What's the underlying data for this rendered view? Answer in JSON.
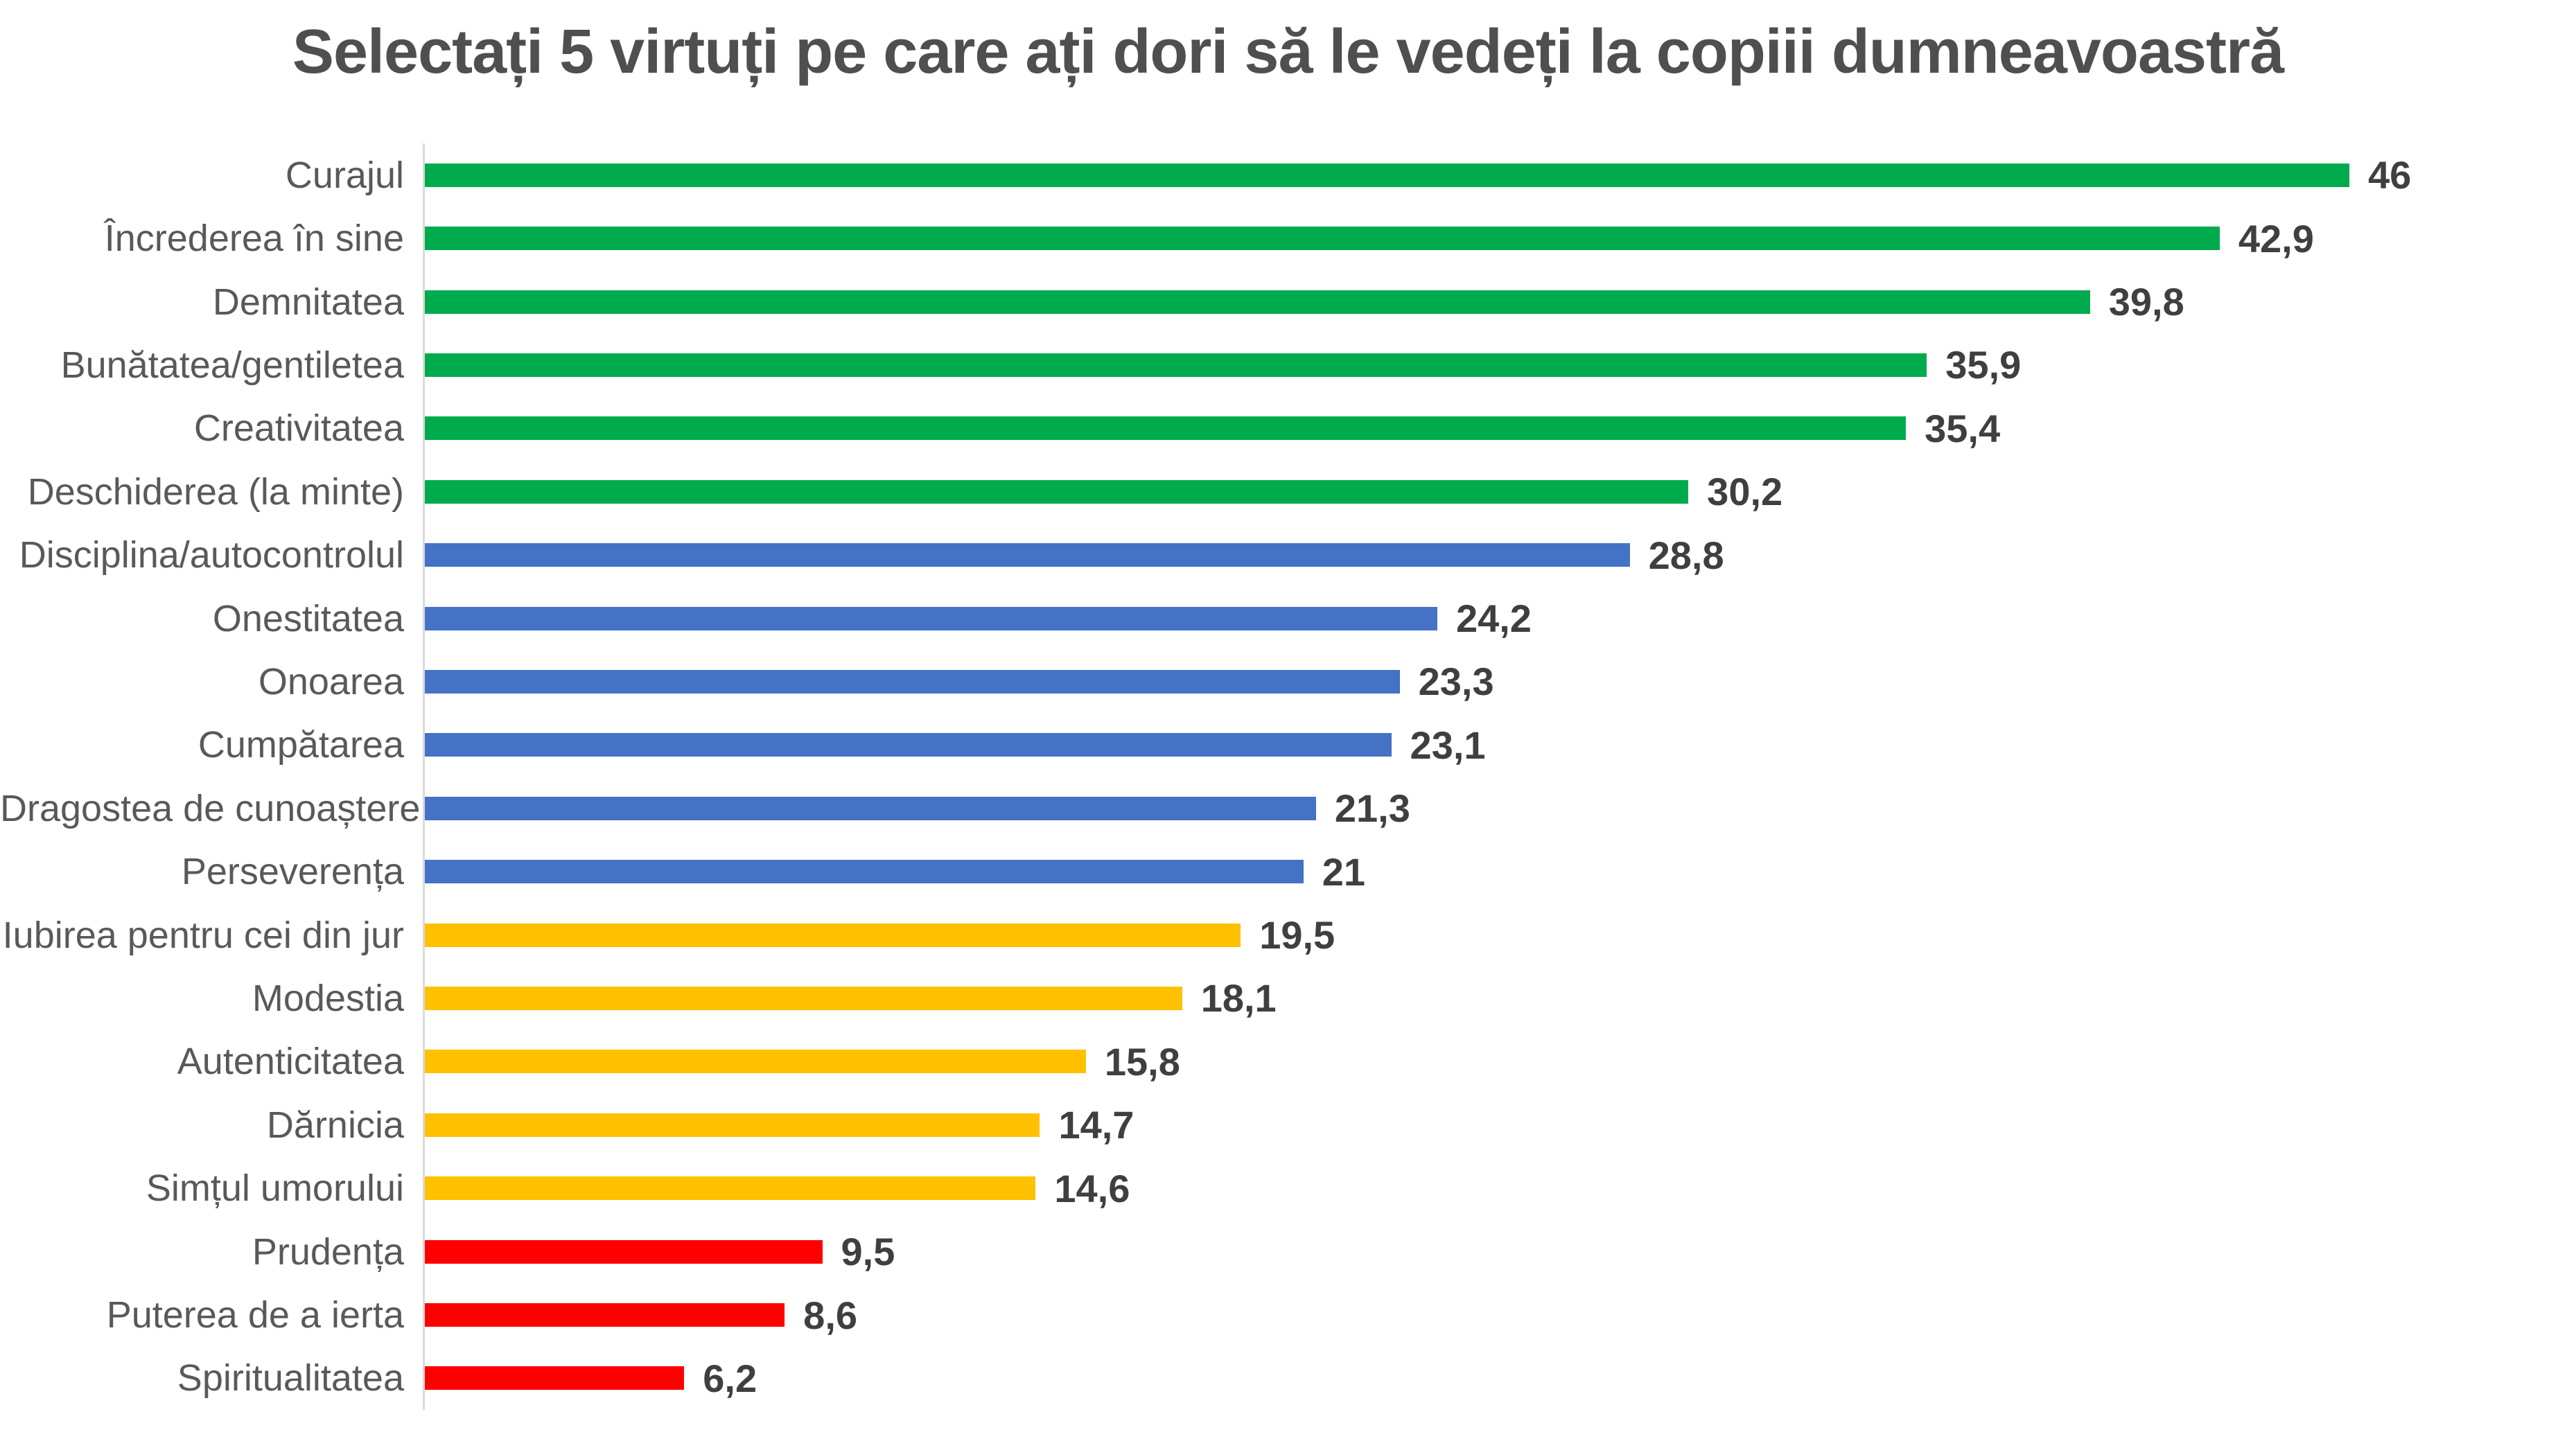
{
  "title": "Selectați 5 virtuți pe care ați dori să le vedeți la copiii dumneavoastră",
  "colors": {
    "green": "#00AB4E",
    "blue": "#4472C4",
    "yellow": "#FFC000",
    "red": "#FF0000",
    "axis_line": "#D9D9D9",
    "title_text": "#4F4F4F",
    "category_label": "#595959",
    "value_label": "#3F3F3F",
    "background": "#FFFFFF"
  },
  "chart_data": {
    "type": "bar",
    "orientation": "horizontal",
    "title": "Selectați 5 virtuți pe care ați dori să le vedeți la copiii dumneavoastră",
    "xlabel": "",
    "ylabel": "",
    "xlim": [
      0,
      50.9
    ],
    "grid": false,
    "legend": "none",
    "value_label_decimal_separator": ",",
    "categories": [
      "Curajul",
      "Încrederea în sine",
      "Demnitatea",
      "Bunătatea/gentiletea",
      "Creativitatea",
      "Deschiderea (la minte)",
      "Disciplina/autocontrolul",
      "Onestitatea",
      "Onoarea",
      "Cumpătarea",
      "Dragostea de cunoaștere",
      "Perseverența",
      "Iubirea pentru cei din jur",
      "Modestia",
      "Autenticitatea",
      "Dărnicia",
      "Simțul umorului",
      "Prudența",
      "Puterea de a ierta",
      "Spiritualitatea"
    ],
    "values": [
      46,
      42.9,
      39.8,
      35.9,
      35.4,
      30.2,
      28.8,
      24.2,
      23.3,
      23.1,
      21.3,
      21,
      19.5,
      18.1,
      15.8,
      14.7,
      14.6,
      9.5,
      8.6,
      6.2
    ],
    "value_labels": [
      "46",
      "42,9",
      "39,8",
      "35,9",
      "35,4",
      "30,2",
      "28,8",
      "24,2",
      "23,3",
      "23,1",
      "21,3",
      "21",
      "19,5",
      "18,1",
      "15,8",
      "14,7",
      "14,6",
      "9,5",
      "8,6",
      "6,2"
    ],
    "bar_colors": [
      "#00AB4E",
      "#00AB4E",
      "#00AB4E",
      "#00AB4E",
      "#00AB4E",
      "#00AB4E",
      "#4472C4",
      "#4472C4",
      "#4472C4",
      "#4472C4",
      "#4472C4",
      "#4472C4",
      "#FFC000",
      "#FFC000",
      "#FFC000",
      "#FFC000",
      "#FFC000",
      "#FF0000",
      "#FF0000",
      "#FF0000"
    ]
  }
}
